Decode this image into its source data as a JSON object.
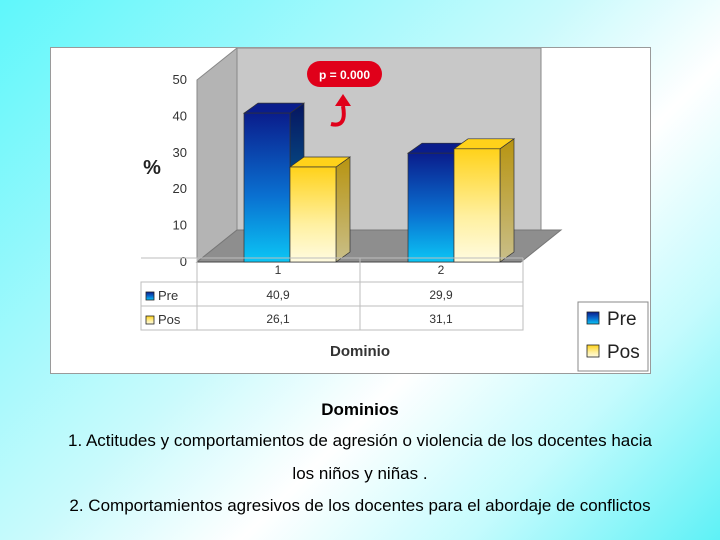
{
  "chart_data": {
    "type": "bar",
    "categories": [
      "1",
      "2"
    ],
    "series": [
      {
        "name": "Pre",
        "values": [
          40.9,
          29.9
        ]
      },
      {
        "name": "Pos",
        "values": [
          26.1,
          31.1
        ]
      }
    ],
    "value_labels": [
      [
        "40,9",
        "29,9"
      ],
      [
        "26,1",
        "31,1"
      ]
    ],
    "y_ticks": [
      "0",
      "10",
      "20",
      "30",
      "40",
      "50"
    ],
    "ylim": [
      0,
      50
    ],
    "ylabel": "%",
    "xlabel": "Dominio",
    "annotation": "p = 0.000",
    "legend_position": "right",
    "data_table": true,
    "grid": false,
    "colors": {
      "pre_top": "#0a1d8c",
      "pre_bottom": "#0bc0f2",
      "pos_top": "#ffd21a",
      "pos_bottom": "#fffad8",
      "wall": "#c8c8c8",
      "floor": "#8e8e8e",
      "annotation_bg": "#e0001a"
    }
  },
  "captions": {
    "title": "Dominios",
    "line1": "1. Actitudes y comportamientos de agresión o violencia de los docentes hacia",
    "line1b": "los niños y niñas .",
    "line2": "2. Comportamientos agresivos de los docentes para el abordaje de conflictos"
  }
}
